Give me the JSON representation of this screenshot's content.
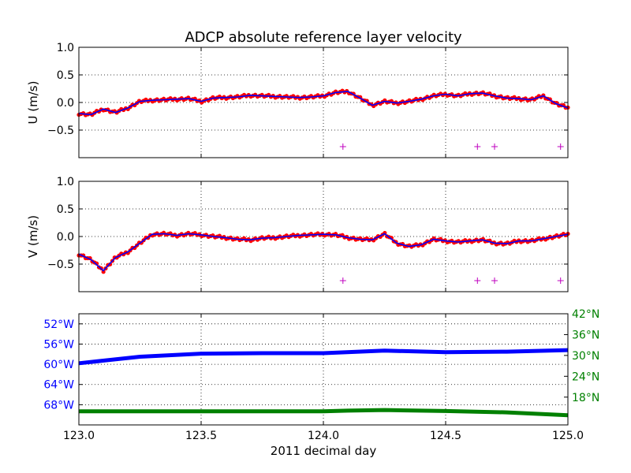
{
  "title": "ADCP absolute reference layer velocity",
  "xlabel": "2011 decimal day",
  "colors": {
    "u_points": "#ff0000",
    "u_line": "#0000ff",
    "v_points": "#ff0000",
    "v_line": "#0000ff",
    "flag_markers": "#bf00bf",
    "longitude": "#0000ff",
    "latitude": "#008000",
    "grid": "#000000"
  },
  "chart_data": [
    {
      "type": "scatter",
      "id": "u",
      "ylabel": "U (m/s)",
      "xlim": [
        123.0,
        125.0
      ],
      "ylim": [
        -1.0,
        1.0
      ],
      "grid": true,
      "xticks": [
        123.0,
        123.5,
        124.0,
        124.5,
        125.0
      ],
      "yticks": [
        -0.5,
        0.0,
        0.5,
        1.0
      ],
      "ytick_labels": [
        "−0.5",
        "0.0",
        "0.5",
        "1.0"
      ],
      "x": [
        123.0,
        123.05,
        123.1,
        123.15,
        123.2,
        123.25,
        123.3,
        123.35,
        123.4,
        123.45,
        123.5,
        123.55,
        123.6,
        123.65,
        123.7,
        123.75,
        123.8,
        123.85,
        123.9,
        123.95,
        124.0,
        124.05,
        124.1,
        124.15,
        124.2,
        124.25,
        124.3,
        124.35,
        124.4,
        124.45,
        124.5,
        124.55,
        124.6,
        124.65,
        124.7,
        124.75,
        124.8,
        124.85,
        124.9,
        124.95,
        125.0
      ],
      "y": [
        -0.2,
        -0.22,
        -0.12,
        -0.18,
        -0.1,
        0.02,
        0.04,
        0.05,
        0.06,
        0.07,
        0.02,
        0.08,
        0.09,
        0.1,
        0.13,
        0.12,
        0.11,
        0.1,
        0.09,
        0.1,
        0.12,
        0.18,
        0.2,
        0.08,
        -0.05,
        0.02,
        -0.01,
        0.02,
        0.06,
        0.12,
        0.15,
        0.12,
        0.16,
        0.17,
        0.12,
        0.08,
        0.07,
        0.05,
        0.12,
        -0.02,
        -0.1
      ],
      "flags_x": [
        124.08,
        124.63,
        124.7,
        124.97
      ],
      "flags_y": [
        -0.8,
        -0.8,
        -0.8,
        -0.8
      ]
    },
    {
      "type": "scatter",
      "id": "v",
      "ylabel": "V (m/s)",
      "xlim": [
        123.0,
        125.0
      ],
      "ylim": [
        -1.0,
        1.0
      ],
      "grid": true,
      "xticks": [
        123.0,
        123.5,
        124.0,
        124.5,
        125.0
      ],
      "yticks": [
        -0.5,
        0.0,
        0.5,
        1.0
      ],
      "ytick_labels": [
        "−0.5",
        "0.0",
        "0.5",
        "1.0"
      ],
      "x": [
        123.0,
        123.05,
        123.1,
        123.15,
        123.2,
        123.25,
        123.3,
        123.35,
        123.4,
        123.45,
        123.5,
        123.55,
        123.6,
        123.65,
        123.7,
        123.75,
        123.8,
        123.85,
        123.9,
        123.95,
        124.0,
        124.05,
        124.1,
        124.15,
        124.2,
        124.25,
        124.3,
        124.35,
        124.4,
        124.45,
        124.5,
        124.55,
        124.6,
        124.65,
        124.7,
        124.75,
        124.8,
        124.85,
        124.9,
        124.95,
        125.0
      ],
      "y": [
        -0.32,
        -0.42,
        -0.62,
        -0.38,
        -0.28,
        -0.12,
        0.04,
        0.05,
        0.02,
        0.05,
        0.03,
        0.0,
        -0.02,
        -0.05,
        -0.06,
        -0.03,
        -0.02,
        0.0,
        0.02,
        0.03,
        0.04,
        0.03,
        -0.02,
        -0.05,
        -0.06,
        0.05,
        -0.12,
        -0.18,
        -0.15,
        -0.05,
        -0.08,
        -0.1,
        -0.08,
        -0.06,
        -0.12,
        -0.13,
        -0.08,
        -0.08,
        -0.04,
        0.0,
        0.04
      ],
      "flags_x": [
        124.08,
        124.63,
        124.7,
        124.97
      ],
      "flags_y": [
        -0.8,
        -0.8,
        -0.8,
        -0.8
      ]
    },
    {
      "type": "line",
      "id": "position",
      "xlim": [
        123.0,
        125.0
      ],
      "xticks": [
        123.0,
        123.5,
        124.0,
        124.5,
        125.0
      ],
      "xtick_labels": [
        "123.0",
        "123.5",
        "124.0",
        "124.5",
        "125.0"
      ],
      "grid": true,
      "left_axis": {
        "quantity": "longitude",
        "ylim": [
          -72,
          -50
        ],
        "yticks": [
          -52,
          -56,
          -60,
          -64,
          -68
        ],
        "ytick_labels": [
          "52°W",
          "56°W",
          "60°W",
          "64°W",
          "68°W"
        ]
      },
      "right_axis": {
        "quantity": "latitude",
        "ylim": [
          10,
          42
        ],
        "yticks": [
          42,
          36,
          30,
          24,
          18
        ],
        "ytick_labels": [
          "42°N",
          "36°N",
          "30°N",
          "24°N",
          "18°N"
        ]
      },
      "series": [
        {
          "axis": "left",
          "x": [
            123.0,
            123.25,
            123.5,
            123.75,
            124.0,
            124.25,
            124.5,
            124.75,
            125.0
          ],
          "y": [
            -59.8,
            -58.5,
            -57.9,
            -57.8,
            -57.8,
            -57.3,
            -57.6,
            -57.5,
            -57.2
          ]
        },
        {
          "axis": "right",
          "x": [
            123.0,
            123.25,
            123.5,
            123.75,
            124.0,
            124.1,
            124.25,
            124.5,
            124.75,
            125.0
          ],
          "y": [
            13.9,
            13.9,
            13.9,
            13.9,
            13.9,
            14.1,
            14.3,
            14.0,
            13.6,
            12.8
          ]
        }
      ]
    }
  ]
}
